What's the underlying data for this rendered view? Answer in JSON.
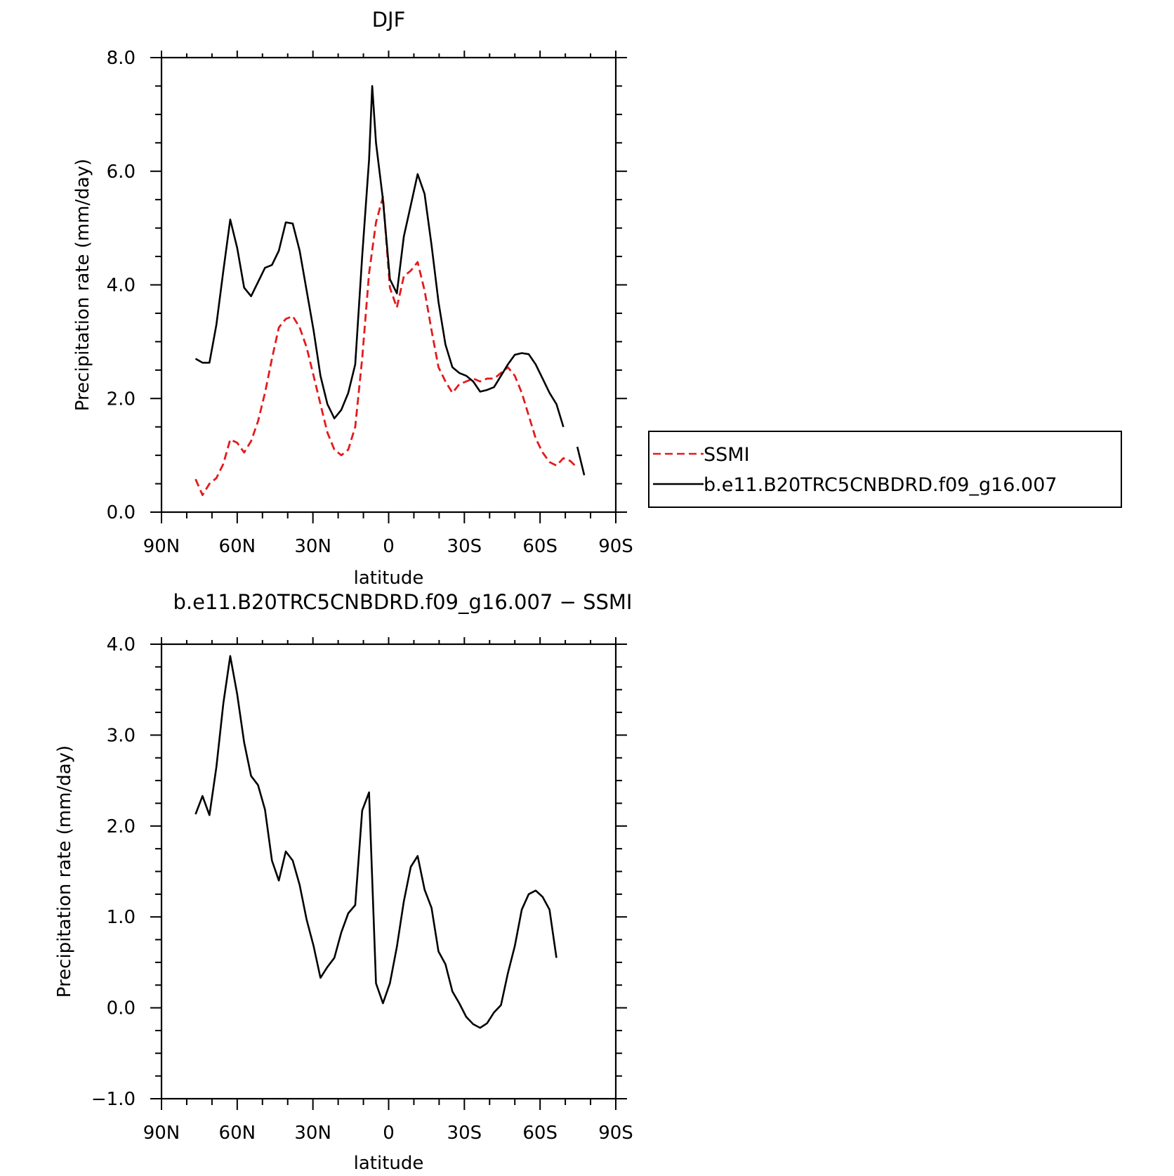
{
  "chart_data": [
    {
      "type": "line",
      "title": "DJF",
      "xlabel": "latitude",
      "ylabel": "Precipitation rate (mm/day)",
      "xlim": [
        90,
        -90
      ],
      "ylim": [
        0,
        8
      ],
      "xticks": [
        {
          "value": 90,
          "label": "90N"
        },
        {
          "value": 60,
          "label": "60N"
        },
        {
          "value": 30,
          "label": "30N"
        },
        {
          "value": 0,
          "label": "0"
        },
        {
          "value": -30,
          "label": "30S"
        },
        {
          "value": -60,
          "label": "60S"
        },
        {
          "value": -90,
          "label": "90S"
        }
      ],
      "yticks": [
        {
          "value": 0,
          "label": "0.0"
        },
        {
          "value": 2,
          "label": "2.0"
        },
        {
          "value": 4,
          "label": "4.0"
        },
        {
          "value": 6,
          "label": "6.0"
        },
        {
          "value": 8,
          "label": "8.0"
        }
      ],
      "legend": {
        "placement": "right"
      },
      "series": [
        {
          "name": "SSMI",
          "color": "#e41a1c",
          "dash": true,
          "points": [
            [
              76.5,
              0.58
            ],
            [
              73.75,
              0.3
            ],
            [
              71,
              0.5
            ],
            [
              68.25,
              0.6
            ],
            [
              65.5,
              0.85
            ],
            [
              62.75,
              1.28
            ],
            [
              60,
              1.22
            ],
            [
              57.25,
              1.05
            ],
            [
              54.5,
              1.25
            ],
            [
              51.75,
              1.6
            ],
            [
              49,
              2.1
            ],
            [
              46.25,
              2.7
            ],
            [
              43.5,
              3.25
            ],
            [
              40.75,
              3.4
            ],
            [
              38,
              3.45
            ],
            [
              35.25,
              3.25
            ],
            [
              32.5,
              2.9
            ],
            [
              29.75,
              2.4
            ],
            [
              27,
              1.9
            ],
            [
              24.25,
              1.4
            ],
            [
              21.5,
              1.1
            ],
            [
              18.75,
              1.0
            ],
            [
              16,
              1.1
            ],
            [
              13.25,
              1.5
            ],
            [
              10.5,
              2.7
            ],
            [
              7.75,
              4.2
            ],
            [
              5,
              5.1
            ],
            [
              2.25,
              5.55
            ],
            [
              -0.5,
              3.95
            ],
            [
              -3.25,
              3.6
            ],
            [
              -6,
              4.15
            ],
            [
              -8.75,
              4.25
            ],
            [
              -11.5,
              4.4
            ],
            [
              -14.25,
              3.9
            ],
            [
              -17,
              3.2
            ],
            [
              -19.75,
              2.55
            ],
            [
              -22.5,
              2.3
            ],
            [
              -25.25,
              2.1
            ],
            [
              -28,
              2.25
            ],
            [
              -30.75,
              2.3
            ],
            [
              -33.5,
              2.35
            ],
            [
              -36.25,
              2.3
            ],
            [
              -39,
              2.35
            ],
            [
              -41.75,
              2.35
            ],
            [
              -44.5,
              2.45
            ],
            [
              -47.25,
              2.55
            ],
            [
              -50,
              2.4
            ],
            [
              -52.75,
              2.1
            ],
            [
              -55.5,
              1.7
            ],
            [
              -58.25,
              1.3
            ],
            [
              -61,
              1.05
            ],
            [
              -63.75,
              0.88
            ],
            [
              -66.5,
              0.82
            ],
            [
              -69.25,
              0.95
            ],
            [
              -72,
              0.9
            ],
            [
              -74.75,
              0.78
            ]
          ]
        },
        {
          "name": "b.e11.B20TRC5CNBDRD.f09_g16.007",
          "color": "#000000",
          "dash": false,
          "segments": [
            [
              [
                76.5,
                2.7
              ],
              [
                73.75,
                2.63
              ],
              [
                71,
                2.63
              ],
              [
                68.25,
                3.3
              ],
              [
                65.5,
                4.25
              ],
              [
                62.75,
                5.15
              ],
              [
                60,
                4.65
              ],
              [
                57.25,
                3.95
              ],
              [
                54.5,
                3.8
              ],
              [
                51.75,
                4.05
              ],
              [
                49,
                4.3
              ],
              [
                46.25,
                4.35
              ],
              [
                43.5,
                4.6
              ],
              [
                40.75,
                5.1
              ],
              [
                38,
                5.08
              ],
              [
                35.25,
                4.6
              ],
              [
                32.5,
                3.9
              ],
              [
                29.75,
                3.2
              ],
              [
                27,
                2.4
              ],
              [
                24.25,
                1.9
              ],
              [
                21.5,
                1.65
              ],
              [
                18.75,
                1.8
              ],
              [
                16,
                2.1
              ],
              [
                13.25,
                2.6
              ],
              [
                10.5,
                4.5
              ],
              [
                7.75,
                6.2
              ],
              [
                6.5,
                7.5
              ],
              [
                5,
                6.5
              ],
              [
                2.25,
                5.5
              ],
              [
                -0.5,
                4.1
              ],
              [
                -3.25,
                3.85
              ],
              [
                -6,
                4.85
              ],
              [
                -8.75,
                5.4
              ],
              [
                -11.5,
                5.95
              ],
              [
                -14.25,
                5.6
              ],
              [
                -17,
                4.7
              ],
              [
                -19.75,
                3.7
              ],
              [
                -22.5,
                2.95
              ],
              [
                -25.25,
                2.55
              ],
              [
                -28,
                2.45
              ],
              [
                -30.75,
                2.4
              ],
              [
                -33.5,
                2.3
              ],
              [
                -36.25,
                2.12
              ],
              [
                -39,
                2.15
              ],
              [
                -41.75,
                2.2
              ],
              [
                -44.5,
                2.4
              ],
              [
                -47.25,
                2.6
              ],
              [
                -50,
                2.77
              ],
              [
                -52.75,
                2.8
              ],
              [
                -55.5,
                2.78
              ],
              [
                -58.25,
                2.6
              ],
              [
                -61,
                2.35
              ],
              [
                -63.75,
                2.1
              ],
              [
                -66.5,
                1.9
              ],
              [
                -69.25,
                1.5
              ]
            ],
            [
              [
                -74.75,
                1.15
              ],
              [
                -77.5,
                0.65
              ]
            ]
          ]
        }
      ]
    },
    {
      "type": "line",
      "title": "b.e11.B20TRC5CNBDRD.f09_g16.007 − SSMI",
      "xlabel": "latitude",
      "ylabel": "Precipitation rate (mm/day)",
      "xlim": [
        90,
        -90
      ],
      "ylim": [
        -1,
        4
      ],
      "xticks": [
        {
          "value": 90,
          "label": "90N"
        },
        {
          "value": 60,
          "label": "60N"
        },
        {
          "value": 30,
          "label": "30N"
        },
        {
          "value": 0,
          "label": "0"
        },
        {
          "value": -30,
          "label": "30S"
        },
        {
          "value": -60,
          "label": "60S"
        },
        {
          "value": -90,
          "label": "90S"
        }
      ],
      "yticks": [
        {
          "value": -1,
          "label": "−1.0"
        },
        {
          "value": 0,
          "label": "0.0"
        },
        {
          "value": 1,
          "label": "1.0"
        },
        {
          "value": 2,
          "label": "2.0"
        },
        {
          "value": 3,
          "label": "3.0"
        },
        {
          "value": 4,
          "label": "4.0"
        }
      ],
      "series": [
        {
          "color": "#000000",
          "dash": false,
          "points": [
            [
              76.5,
              2.13
            ],
            [
              73.75,
              2.33
            ],
            [
              71,
              2.12
            ],
            [
              68.25,
              2.65
            ],
            [
              65.5,
              3.35
            ],
            [
              62.75,
              3.87
            ],
            [
              60,
              3.45
            ],
            [
              57.25,
              2.92
            ],
            [
              54.5,
              2.55
            ],
            [
              51.75,
              2.45
            ],
            [
              49,
              2.18
            ],
            [
              46.25,
              1.62
            ],
            [
              43.5,
              1.4
            ],
            [
              40.75,
              1.72
            ],
            [
              38,
              1.62
            ],
            [
              35.25,
              1.35
            ],
            [
              32.5,
              0.97
            ],
            [
              29.75,
              0.68
            ],
            [
              27,
              0.33
            ],
            [
              24.25,
              0.45
            ],
            [
              21.5,
              0.55
            ],
            [
              18.75,
              0.83
            ],
            [
              16,
              1.04
            ],
            [
              13.25,
              1.13
            ],
            [
              10.5,
              2.17
            ],
            [
              7.75,
              2.37
            ],
            [
              5,
              0.27
            ],
            [
              2.25,
              0.05
            ],
            [
              -0.5,
              0.27
            ],
            [
              -3.25,
              0.67
            ],
            [
              -6,
              1.17
            ],
            [
              -8.75,
              1.55
            ],
            [
              -11.5,
              1.67
            ],
            [
              -14.25,
              1.3
            ],
            [
              -17,
              1.1
            ],
            [
              -19.75,
              0.62
            ],
            [
              -22.5,
              0.48
            ],
            [
              -25.25,
              0.18
            ],
            [
              -28,
              0.05
            ],
            [
              -30.75,
              -0.1
            ],
            [
              -33.5,
              -0.18
            ],
            [
              -36.25,
              -0.22
            ],
            [
              -39,
              -0.17
            ],
            [
              -41.75,
              -0.05
            ],
            [
              -44.5,
              0.03
            ],
            [
              -47.25,
              0.38
            ],
            [
              -50,
              0.68
            ],
            [
              -52.75,
              1.08
            ],
            [
              -55.5,
              1.25
            ],
            [
              -58.25,
              1.29
            ],
            [
              -61,
              1.22
            ],
            [
              -63.75,
              1.08
            ],
            [
              -66.5,
              0.55
            ]
          ]
        }
      ]
    }
  ]
}
